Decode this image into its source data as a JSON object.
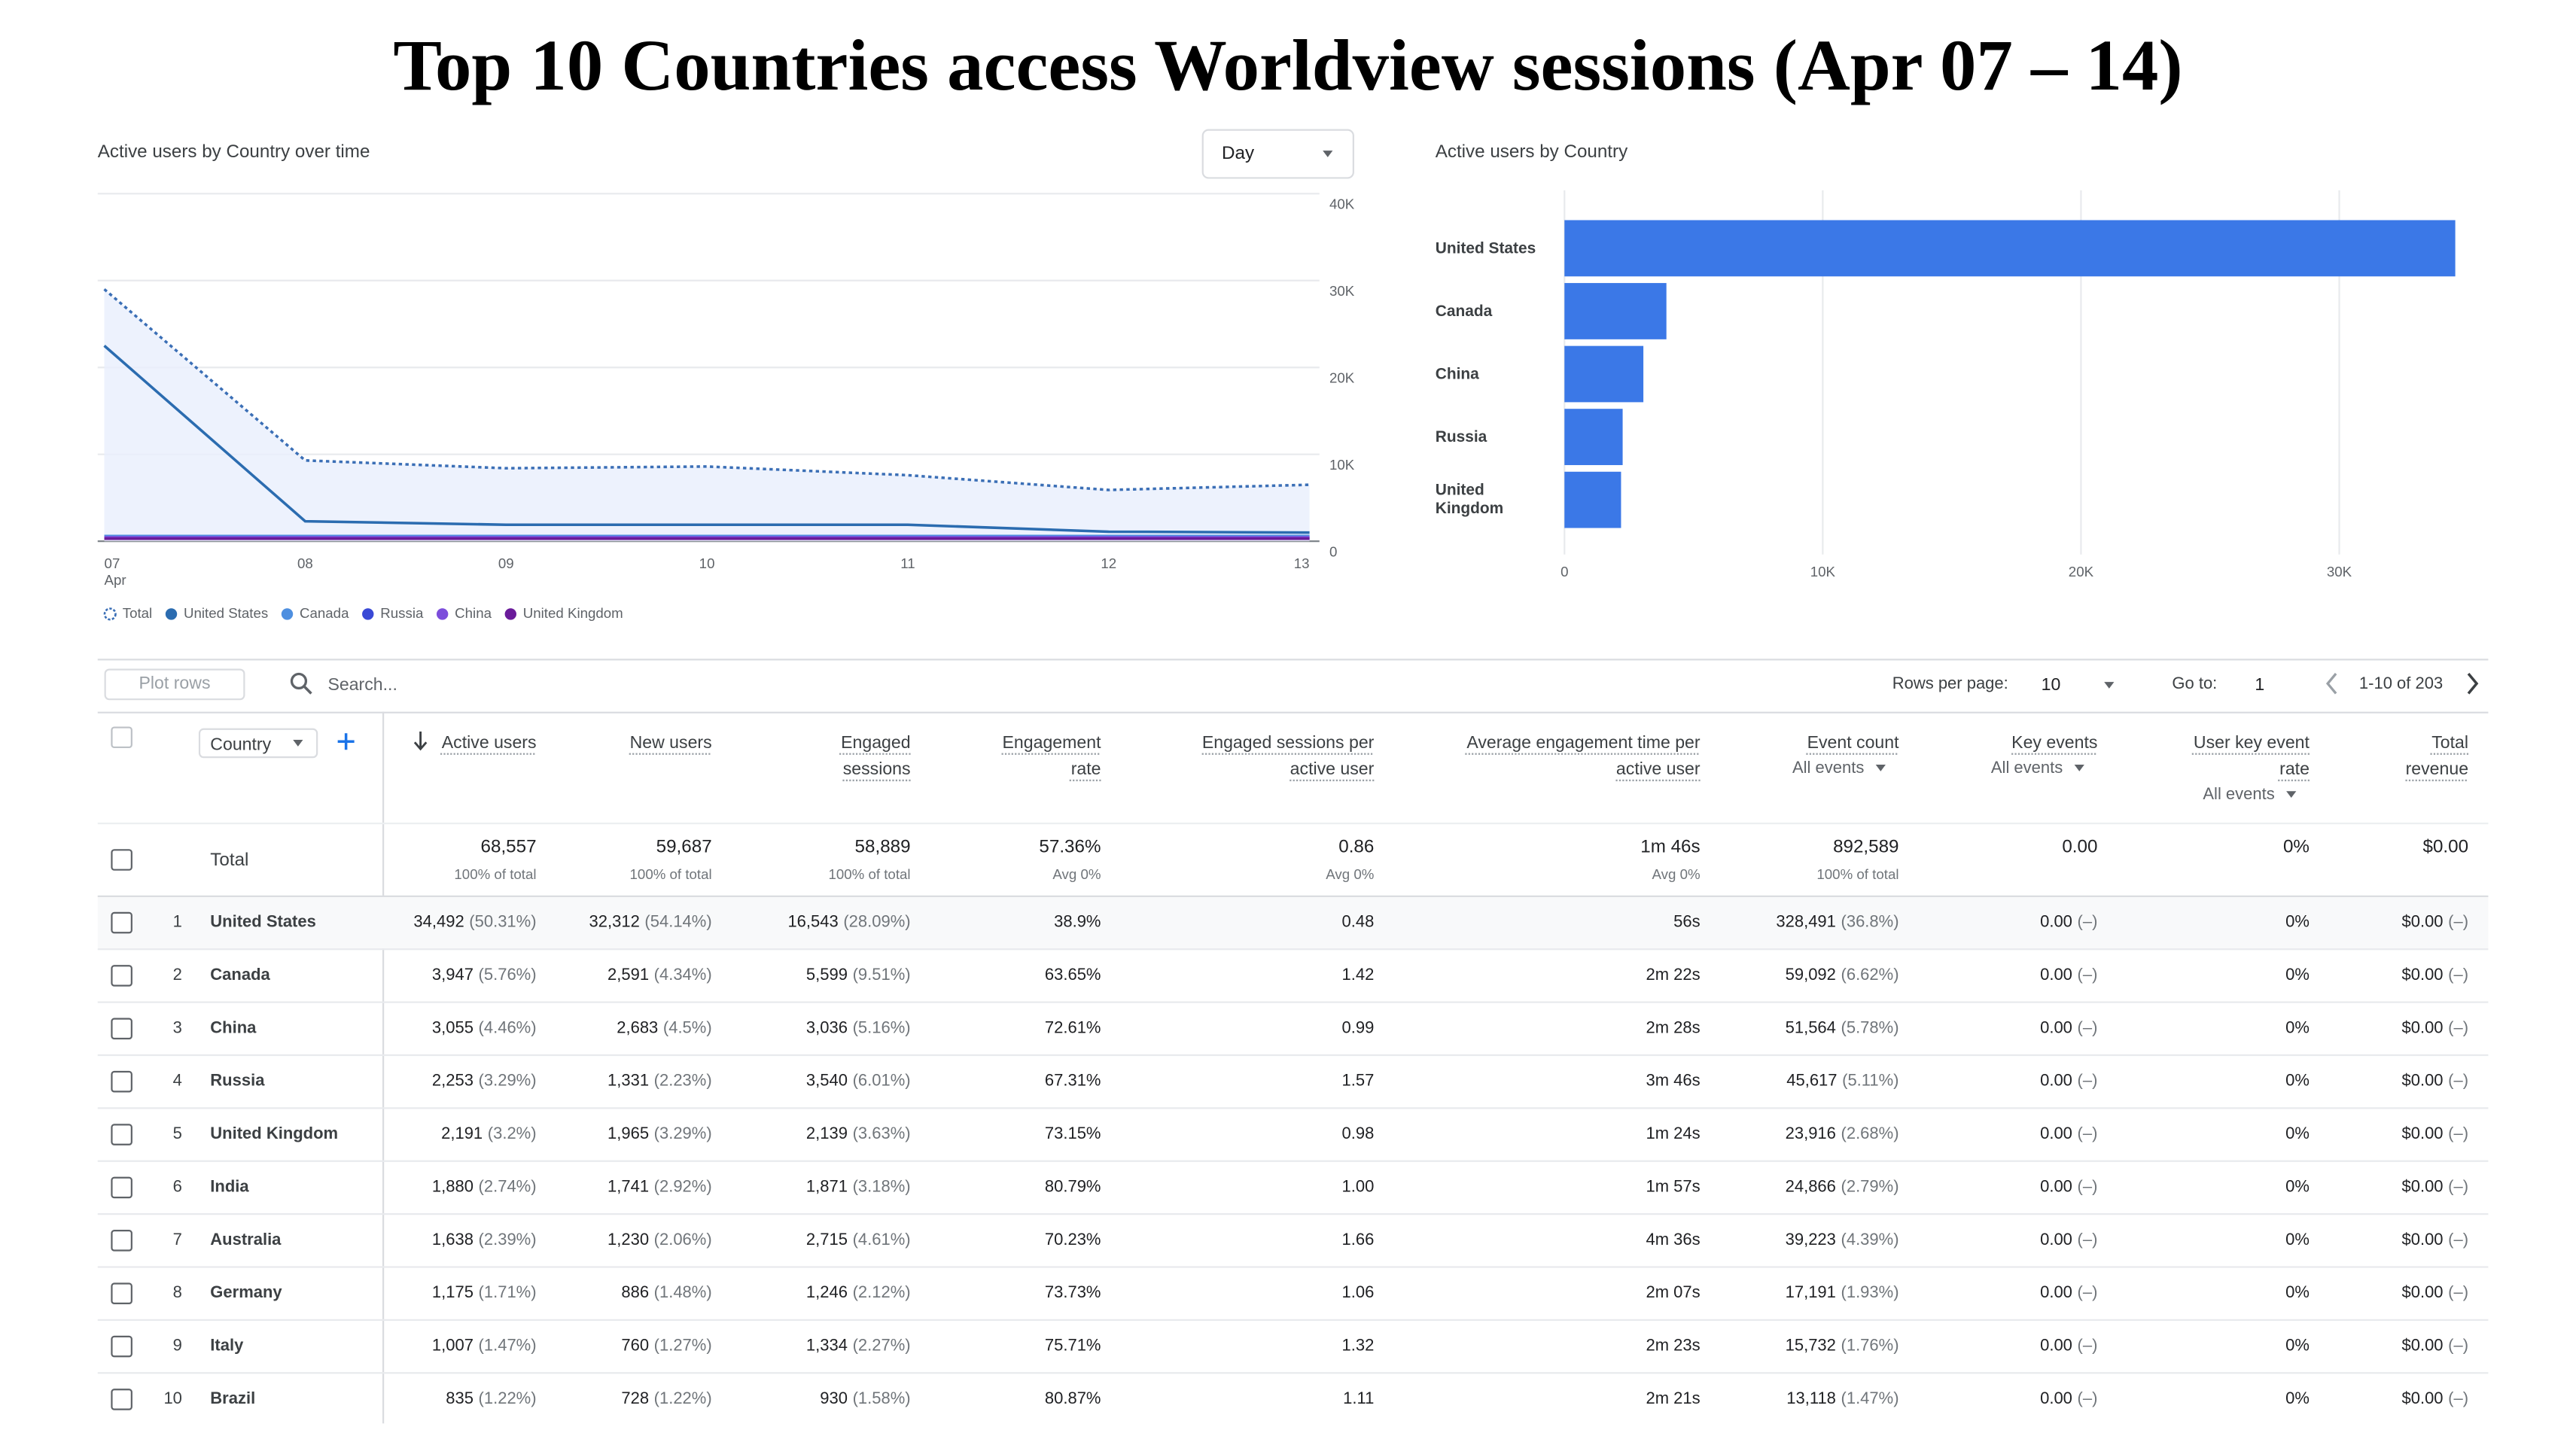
{
  "title": "Top 10 Countries access Worldview sessions (Apr 07 – 14)",
  "chart_data": [
    {
      "type": "line",
      "title": "Active users by Country over time",
      "dropdown": "Day",
      "categories": [
        "07",
        "08",
        "09",
        "10",
        "11",
        "12",
        "13"
      ],
      "x_month": "Apr",
      "series": [
        {
          "name": "Total",
          "color": "#3b6fb6",
          "style": "dotted",
          "fill": true,
          "values": [
            29000,
            9300,
            8400,
            8600,
            7600,
            5900,
            6500
          ]
        },
        {
          "name": "United States",
          "color": "#2b6cb0",
          "values": [
            22500,
            2300,
            1900,
            1900,
            1900,
            1100,
            1000
          ]
        },
        {
          "name": "Canada",
          "color": "#4e8fe0",
          "values": [
            600,
            600,
            600,
            600,
            600,
            600,
            600
          ]
        },
        {
          "name": "Russia",
          "color": "#3949d6",
          "values": [
            300,
            300,
            300,
            300,
            300,
            300,
            300
          ]
        },
        {
          "name": "China",
          "color": "#7c4ddb",
          "values": [
            450,
            450,
            450,
            450,
            450,
            450,
            450
          ]
        },
        {
          "name": "United Kingdom",
          "color": "#6a1b9a",
          "values": [
            300,
            300,
            300,
            300,
            300,
            300,
            300
          ]
        }
      ],
      "ylim": [
        0,
        40000
      ],
      "yticks": [
        0,
        {
          "value": 10000,
          "label": "10K"
        },
        {
          "value": 20000,
          "label": "20K"
        },
        {
          "value": 30000,
          "label": "30K"
        },
        {
          "value": 40000,
          "label": "40K"
        }
      ],
      "grid": true,
      "legend": "bottom"
    },
    {
      "type": "bar",
      "orientation": "horizontal",
      "title": "Active users by Country",
      "categories": [
        "United States",
        "Canada",
        "China",
        "Russia",
        "United Kingdom"
      ],
      "values": [
        34492,
        3947,
        3055,
        2253,
        2191
      ],
      "color": "#3b78e7",
      "xlim": [
        0,
        35000
      ],
      "xticks": [
        0,
        {
          "value": 10000,
          "label": "10K"
        },
        {
          "value": 20000,
          "label": "20K"
        },
        {
          "value": 30000,
          "label": "30K"
        }
      ],
      "grid": true
    }
  ],
  "toolbar": {
    "plot_rows": "Plot rows",
    "search": "Search...",
    "rows_per_page_label": "Rows per page:",
    "rows_per_page": 10,
    "go_to_label": "Go to:",
    "go_to": 1,
    "range": "1-10 of 203"
  },
  "table": {
    "dimension": "Country",
    "columns": [
      {
        "label": "Active users"
      },
      {
        "label": "New users"
      },
      {
        "label": "Engaged sessions"
      },
      {
        "label": "Engagement rate"
      },
      {
        "label": "Engaged sessions per active user"
      },
      {
        "label": "Average engagement time per active user"
      },
      {
        "label": "Event count",
        "sub": "All events"
      },
      {
        "label": "Key events",
        "sub": "All events"
      },
      {
        "label": "User key event rate",
        "sub": "All events"
      },
      {
        "label": "Total revenue"
      }
    ],
    "total": {
      "label": "Total",
      "cells": [
        [
          "68,557",
          "100% of total"
        ],
        [
          "59,687",
          "100% of total"
        ],
        [
          "58,889",
          "100% of total"
        ],
        [
          "57.36%",
          "Avg 0%"
        ],
        [
          "0.86",
          "Avg 0%"
        ],
        [
          "1m 46s",
          "Avg 0%"
        ],
        [
          "892,589",
          "100% of total"
        ],
        [
          "0.00"
        ],
        [
          "0%"
        ],
        [
          "$0.00"
        ]
      ]
    },
    "rows": [
      {
        "rank": 1,
        "country": "United States",
        "cells": [
          [
            "34,492",
            "(50.31%)"
          ],
          [
            "32,312",
            "(54.14%)"
          ],
          [
            "16,543",
            "(28.09%)"
          ],
          [
            "38.9%"
          ],
          [
            "0.48"
          ],
          [
            "56s"
          ],
          [
            "328,491",
            "(36.8%)"
          ],
          [
            "0.00",
            "(–)"
          ],
          [
            "0%"
          ],
          [
            "$0.00",
            "(–)"
          ]
        ]
      },
      {
        "rank": 2,
        "country": "Canada",
        "cells": [
          [
            "3,947",
            "(5.76%)"
          ],
          [
            "2,591",
            "(4.34%)"
          ],
          [
            "5,599",
            "(9.51%)"
          ],
          [
            "63.65%"
          ],
          [
            "1.42"
          ],
          [
            "2m 22s"
          ],
          [
            "59,092",
            "(6.62%)"
          ],
          [
            "0.00",
            "(–)"
          ],
          [
            "0%"
          ],
          [
            "$0.00",
            "(–)"
          ]
        ]
      },
      {
        "rank": 3,
        "country": "China",
        "cells": [
          [
            "3,055",
            "(4.46%)"
          ],
          [
            "2,683",
            "(4.5%)"
          ],
          [
            "3,036",
            "(5.16%)"
          ],
          [
            "72.61%"
          ],
          [
            "0.99"
          ],
          [
            "2m 28s"
          ],
          [
            "51,564",
            "(5.78%)"
          ],
          [
            "0.00",
            "(–)"
          ],
          [
            "0%"
          ],
          [
            "$0.00",
            "(–)"
          ]
        ]
      },
      {
        "rank": 4,
        "country": "Russia",
        "cells": [
          [
            "2,253",
            "(3.29%)"
          ],
          [
            "1,331",
            "(2.23%)"
          ],
          [
            "3,540",
            "(6.01%)"
          ],
          [
            "67.31%"
          ],
          [
            "1.57"
          ],
          [
            "3m 46s"
          ],
          [
            "45,617",
            "(5.11%)"
          ],
          [
            "0.00",
            "(–)"
          ],
          [
            "0%"
          ],
          [
            "$0.00",
            "(–)"
          ]
        ]
      },
      {
        "rank": 5,
        "country": "United Kingdom",
        "cells": [
          [
            "2,191",
            "(3.2%)"
          ],
          [
            "1,965",
            "(3.29%)"
          ],
          [
            "2,139",
            "(3.63%)"
          ],
          [
            "73.15%"
          ],
          [
            "0.98"
          ],
          [
            "1m 24s"
          ],
          [
            "23,916",
            "(2.68%)"
          ],
          [
            "0.00",
            "(–)"
          ],
          [
            "0%"
          ],
          [
            "$0.00",
            "(–)"
          ]
        ]
      },
      {
        "rank": 6,
        "country": "India",
        "cells": [
          [
            "1,880",
            "(2.74%)"
          ],
          [
            "1,741",
            "(2.92%)"
          ],
          [
            "1,871",
            "(3.18%)"
          ],
          [
            "80.79%"
          ],
          [
            "1.00"
          ],
          [
            "1m 57s"
          ],
          [
            "24,866",
            "(2.79%)"
          ],
          [
            "0.00",
            "(–)"
          ],
          [
            "0%"
          ],
          [
            "$0.00",
            "(–)"
          ]
        ]
      },
      {
        "rank": 7,
        "country": "Australia",
        "cells": [
          [
            "1,638",
            "(2.39%)"
          ],
          [
            "1,230",
            "(2.06%)"
          ],
          [
            "2,715",
            "(4.61%)"
          ],
          [
            "70.23%"
          ],
          [
            "1.66"
          ],
          [
            "4m 36s"
          ],
          [
            "39,223",
            "(4.39%)"
          ],
          [
            "0.00",
            "(–)"
          ],
          [
            "0%"
          ],
          [
            "$0.00",
            "(–)"
          ]
        ]
      },
      {
        "rank": 8,
        "country": "Germany",
        "cells": [
          [
            "1,175",
            "(1.71%)"
          ],
          [
            "886",
            "(1.48%)"
          ],
          [
            "1,246",
            "(2.12%)"
          ],
          [
            "73.73%"
          ],
          [
            "1.06"
          ],
          [
            "2m 07s"
          ],
          [
            "17,191",
            "(1.93%)"
          ],
          [
            "0.00",
            "(–)"
          ],
          [
            "0%"
          ],
          [
            "$0.00",
            "(–)"
          ]
        ]
      },
      {
        "rank": 9,
        "country": "Italy",
        "cells": [
          [
            "1,007",
            "(1.47%)"
          ],
          [
            "760",
            "(1.27%)"
          ],
          [
            "1,334",
            "(2.27%)"
          ],
          [
            "75.71%"
          ],
          [
            "1.32"
          ],
          [
            "2m 23s"
          ],
          [
            "15,732",
            "(1.76%)"
          ],
          [
            "0.00",
            "(–)"
          ],
          [
            "0%"
          ],
          [
            "$0.00",
            "(–)"
          ]
        ]
      },
      {
        "rank": 10,
        "country": "Brazil",
        "cells": [
          [
            "835",
            "(1.22%)"
          ],
          [
            "728",
            "(1.22%)"
          ],
          [
            "930",
            "(1.58%)"
          ],
          [
            "80.87%"
          ],
          [
            "1.11"
          ],
          [
            "2m 21s"
          ],
          [
            "13,118",
            "(1.47%)"
          ],
          [
            "0.00",
            "(–)"
          ],
          [
            "0%"
          ],
          [
            "$0.00",
            "(–)"
          ]
        ]
      }
    ]
  }
}
